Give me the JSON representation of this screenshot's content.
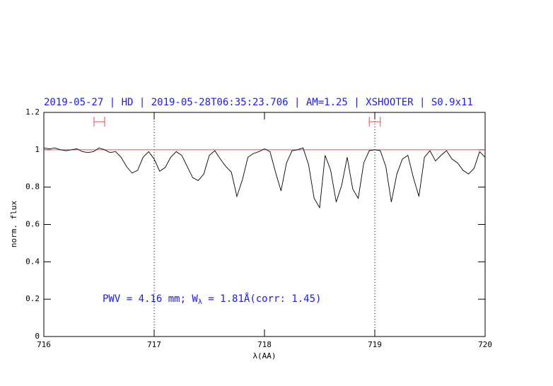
{
  "chart_data": {
    "type": "line",
    "title": "2019-05-27 | HD | 2019-05-28T06:35:23.706 | AM=1.25 | XSHOOTER | S0.9x11",
    "xlabel": "λ(AA)",
    "ylabel": "norm. flux",
    "annotation": [
      "PWV = 4.16 mm; W",
      "λ",
      " = 1.81Å(corr: 1.45)"
    ],
    "xlim": [
      716,
      720
    ],
    "xticks": [
      716,
      717,
      718,
      719,
      720
    ],
    "ylim": [
      0,
      1.2
    ],
    "yticks": [
      0,
      0.2,
      0.4,
      0.6,
      0.8,
      1,
      1.2
    ],
    "reference_line": 1,
    "reference_color": "#e05050",
    "vlines": [
      717,
      719
    ],
    "ranges": [
      [
        716.455,
        716.551
      ],
      [
        718.95,
        719.05
      ]
    ],
    "ranges_y": 1.15,
    "series": [
      {
        "color": "#000000",
        "x": [
          716.0,
          716.05,
          716.1,
          716.15,
          716.2,
          716.25,
          716.3,
          716.35,
          716.4,
          716.45,
          716.5,
          716.55,
          716.6,
          716.65,
          716.7,
          716.75,
          716.8,
          716.85,
          716.9,
          716.95,
          717.0,
          717.05,
          717.1,
          717.15,
          717.2,
          717.25,
          717.3,
          717.35,
          717.4,
          717.45,
          717.5,
          717.55,
          717.6,
          717.65,
          717.7,
          717.75,
          717.8,
          717.85,
          717.9,
          717.95,
          718.0,
          718.05,
          718.1,
          718.15,
          718.2,
          718.25,
          718.3,
          718.35,
          718.4,
          718.45,
          718.5,
          718.55,
          718.6,
          718.65,
          718.7,
          718.75,
          718.8,
          718.85,
          718.9,
          718.95,
          719.0,
          719.05,
          719.1,
          719.15,
          719.2,
          719.25,
          719.3,
          719.35,
          719.4,
          719.45,
          719.5,
          719.55,
          719.6,
          719.65,
          719.7,
          719.75,
          719.8,
          719.85,
          719.9,
          719.95,
          720.0
        ],
        "values": [
          1.01,
          1.005,
          1.01,
          1.0,
          0.995,
          1.0,
          1.005,
          0.99,
          0.985,
          0.99,
          1.01,
          1.0,
          0.985,
          0.99,
          0.96,
          0.91,
          0.875,
          0.89,
          0.96,
          0.99,
          0.95,
          0.885,
          0.905,
          0.96,
          0.99,
          0.97,
          0.91,
          0.85,
          0.835,
          0.87,
          0.97,
          0.995,
          0.95,
          0.91,
          0.88,
          0.75,
          0.84,
          0.96,
          0.98,
          0.99,
          1.005,
          0.99,
          0.88,
          0.78,
          0.93,
          0.995,
          1.0,
          1.01,
          0.92,
          0.74,
          0.69,
          0.97,
          0.89,
          0.72,
          0.81,
          0.96,
          0.79,
          0.74,
          0.93,
          0.995,
          1.0,
          0.995,
          0.91,
          0.72,
          0.87,
          0.95,
          0.97,
          0.85,
          0.75,
          0.96,
          0.995,
          0.94,
          0.97,
          0.995,
          0.95,
          0.93,
          0.89,
          0.87,
          0.9,
          0.99,
          0.96
        ]
      }
    ]
  }
}
